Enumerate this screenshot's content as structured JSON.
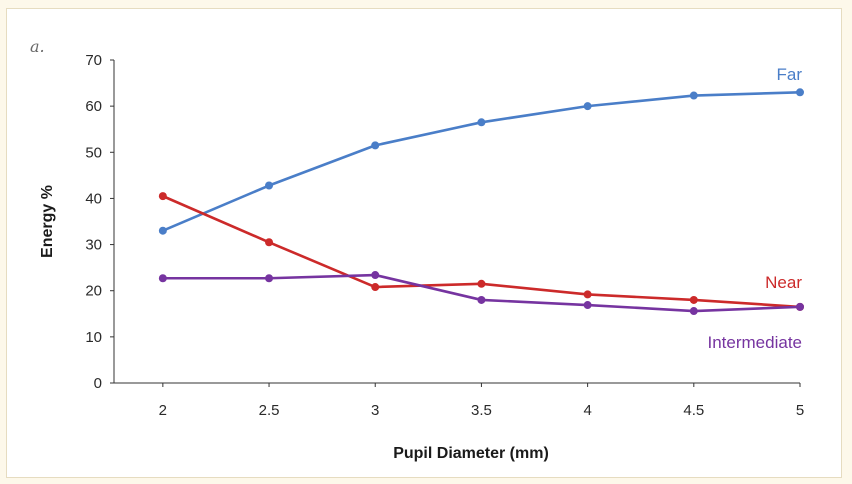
{
  "panel_label": "a.",
  "colors": {
    "Far": "#4a7ec8",
    "Near": "#cc2a2a",
    "Intermediate": "#7634a0"
  },
  "chart_data": {
    "type": "line",
    "title": "",
    "xlabel": "Pupil Diameter (mm)",
    "ylabel": "Energy %",
    "x": [
      2,
      2.5,
      3,
      3.5,
      4,
      4.5,
      5
    ],
    "x_tick_labels": [
      "2",
      "2.5",
      "3",
      "3.5",
      "4",
      "4.5",
      "5"
    ],
    "y_tick_labels": [
      "0",
      "10",
      "20",
      "30",
      "40",
      "50",
      "60",
      "70"
    ],
    "ylim": [
      0,
      70
    ],
    "grid": false,
    "legend": "inline labels at right end of lines",
    "series": [
      {
        "name": "Far",
        "values": [
          33,
          42.8,
          51.5,
          56.5,
          60,
          62.3,
          63
        ]
      },
      {
        "name": "Near",
        "values": [
          40.5,
          30.5,
          20.8,
          21.5,
          19.2,
          18,
          16.5
        ]
      },
      {
        "name": "Intermediate",
        "values": [
          22.7,
          22.7,
          23.4,
          18,
          16.9,
          15.6,
          16.5
        ]
      }
    ]
  }
}
